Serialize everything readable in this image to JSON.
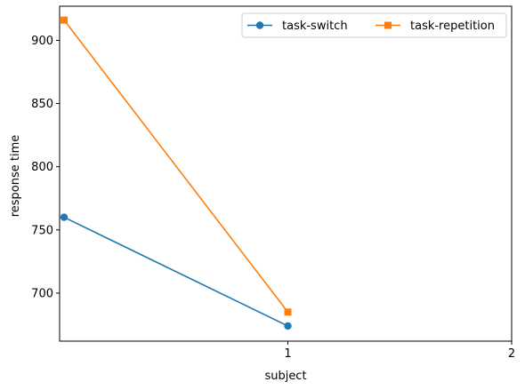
{
  "chart_data": {
    "type": "line",
    "title": "",
    "xlabel": "subject",
    "ylabel": "response time",
    "xlim": [
      -0.02,
      2
    ],
    "ylim": [
      662,
      927
    ],
    "x_ticks": [
      1,
      2
    ],
    "x_tick_labels": [
      "1",
      "2"
    ],
    "y_ticks": [
      700,
      750,
      800,
      850,
      900
    ],
    "y_tick_labels": [
      "700",
      "750",
      "800",
      "850",
      "900"
    ],
    "grid": false,
    "legend_placement": "top-right",
    "series": [
      {
        "name": "task-switch",
        "marker": "circle",
        "color": "#1f77b4",
        "x": [
          0,
          1
        ],
        "y": [
          760,
          674
        ]
      },
      {
        "name": "task-repetition",
        "marker": "square",
        "color": "#ff7f0e",
        "x": [
          0,
          1
        ],
        "y": [
          916,
          685
        ]
      }
    ]
  }
}
